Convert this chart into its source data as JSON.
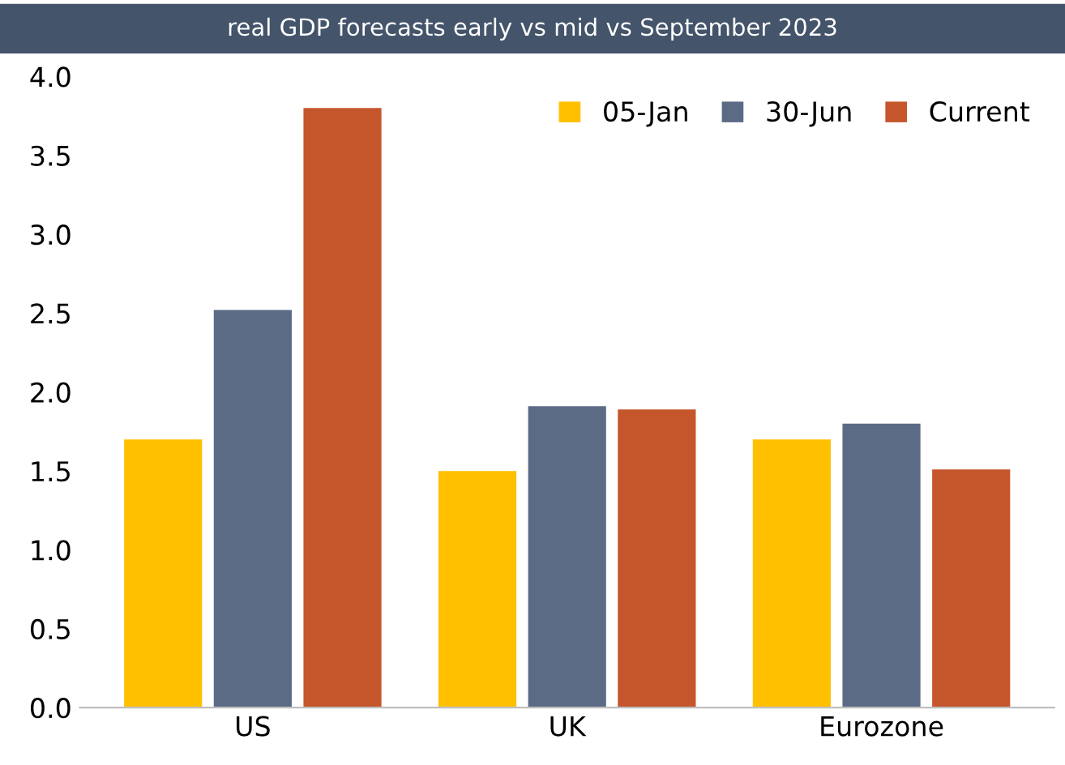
{
  "chart_data": {
    "type": "bar",
    "title": "real GDP forecasts early vs mid vs September 2023",
    "categories": [
      "US",
      "UK",
      "Eurozone"
    ],
    "series": [
      {
        "name": "05-Jan",
        "color": "#ffc000",
        "values": [
          1.7,
          1.5,
          1.7
        ]
      },
      {
        "name": "30-Jun",
        "color": "#5b6b85",
        "values": [
          2.52,
          1.91,
          1.8
        ]
      },
      {
        "name": "Current",
        "color": "#c5562c",
        "values": [
          3.8,
          1.89,
          1.51
        ]
      }
    ],
    "ylim": [
      0,
      4.0
    ],
    "yticks": [
      {
        "value": 0,
        "label": "0.0"
      },
      {
        "value": 0.5,
        "label": "0.5"
      },
      {
        "value": 1,
        "label": "1.0"
      },
      {
        "value": 1.5,
        "label": "1.5"
      },
      {
        "value": 2,
        "label": "2.0"
      },
      {
        "value": 2.5,
        "label": "2.5"
      },
      {
        "value": 3,
        "label": "3.0"
      },
      {
        "value": 3.5,
        "label": "3.5"
      },
      {
        "value": 4,
        "label": "4.0"
      }
    ],
    "grid": false,
    "legend": "top right"
  }
}
